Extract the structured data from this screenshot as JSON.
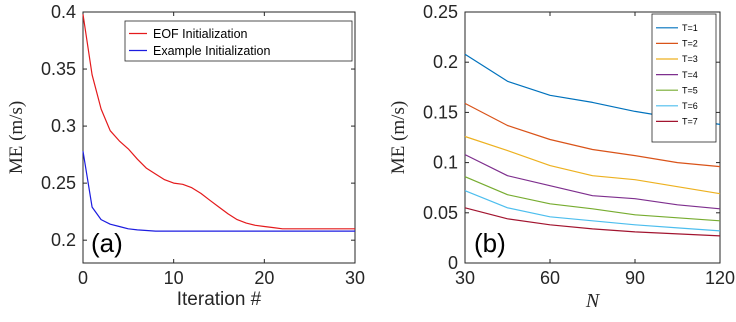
{
  "chart_data": [
    {
      "type": "line",
      "panel_label": "(a)",
      "xlabel": "Iteration #",
      "ylabel": "ME (m/s)",
      "xlim": [
        0,
        30
      ],
      "ylim": [
        0.18,
        0.4
      ],
      "xticks": [
        0,
        10,
        20,
        30
      ],
      "yticks": [
        0.2,
        0.25,
        0.3,
        0.35,
        0.4
      ],
      "legend_position": "top-right",
      "series": [
        {
          "name": "EOF Initialization",
          "color": "#e41a1c",
          "x": [
            0,
            1,
            2,
            3,
            4,
            5,
            6,
            7,
            8,
            9,
            10,
            11,
            12,
            13,
            14,
            15,
            16,
            17,
            18,
            19,
            20,
            21,
            22,
            23,
            24,
            25,
            26,
            27,
            28,
            29,
            30
          ],
          "y": [
            0.398,
            0.345,
            0.315,
            0.296,
            0.287,
            0.28,
            0.271,
            0.263,
            0.258,
            0.253,
            0.25,
            0.249,
            0.246,
            0.241,
            0.235,
            0.229,
            0.223,
            0.218,
            0.215,
            0.213,
            0.212,
            0.211,
            0.21,
            0.21,
            0.21,
            0.21,
            0.21,
            0.21,
            0.21,
            0.21,
            0.21
          ]
        },
        {
          "name": "Example Initialization",
          "color": "#1c1ce0",
          "x": [
            0,
            1,
            2,
            3,
            4,
            5,
            6,
            7,
            8,
            9,
            10,
            15,
            20,
            25,
            30
          ],
          "y": [
            0.278,
            0.229,
            0.218,
            0.214,
            0.212,
            0.21,
            0.209,
            0.2085,
            0.208,
            0.208,
            0.208,
            0.208,
            0.208,
            0.208,
            0.208
          ]
        }
      ]
    },
    {
      "type": "line",
      "panel_label": "(b)",
      "xlabel": "N",
      "ylabel": "ME (m/s)",
      "xlim": [
        30,
        120
      ],
      "ylim": [
        0,
        0.25
      ],
      "xticks": [
        30,
        60,
        90,
        120
      ],
      "yticks": [
        0,
        0.05,
        0.1,
        0.15,
        0.2,
        0.25
      ],
      "legend_position": "top-right",
      "x": [
        30,
        45,
        60,
        75,
        90,
        105,
        120
      ],
      "series": [
        {
          "name": "T=1",
          "color": "#0072bd",
          "values": [
            0.208,
            0.181,
            0.167,
            0.16,
            0.151,
            0.144,
            0.138
          ]
        },
        {
          "name": "T=2",
          "color": "#d95319",
          "values": [
            0.159,
            0.137,
            0.123,
            0.113,
            0.107,
            0.1,
            0.096
          ]
        },
        {
          "name": "T=3",
          "color": "#edb120",
          "values": [
            0.126,
            0.112,
            0.097,
            0.087,
            0.083,
            0.076,
            0.069
          ]
        },
        {
          "name": "T=4",
          "color": "#7e2f8e",
          "values": [
            0.108,
            0.087,
            0.077,
            0.067,
            0.064,
            0.058,
            0.054
          ]
        },
        {
          "name": "T=5",
          "color": "#77ac30",
          "values": [
            0.086,
            0.068,
            0.059,
            0.054,
            0.048,
            0.045,
            0.042
          ]
        },
        {
          "name": "T=6",
          "color": "#4dbeee",
          "values": [
            0.072,
            0.055,
            0.046,
            0.042,
            0.038,
            0.035,
            0.032
          ]
        },
        {
          "name": "T=7",
          "color": "#a2142f",
          "values": [
            0.055,
            0.044,
            0.038,
            0.034,
            0.031,
            0.029,
            0.027
          ]
        }
      ]
    }
  ]
}
